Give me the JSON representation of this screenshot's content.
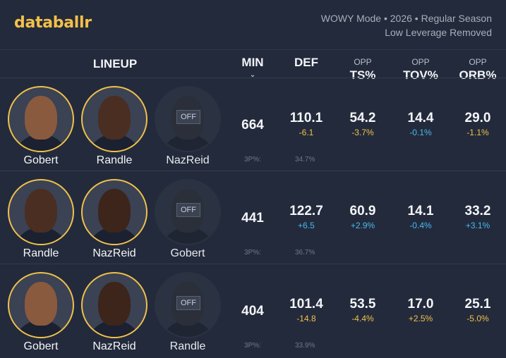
{
  "header": {
    "logo": "databallr",
    "mode_line1": "WOWY Mode • 2026 • Regular Season",
    "mode_line2": "Low Leverage Removed"
  },
  "columns": {
    "lineup": "LINEUP",
    "min": "MIN",
    "def": "DEF",
    "ts_sub": "OPP",
    "ts": "TS%",
    "tov_sub": "OPP",
    "tov": "TOV%",
    "orb_sub": "OPP",
    "orb": "ORB%",
    "sort_icon": "chevron-down-icon"
  },
  "colors": {
    "accent": "#f0c14b",
    "positive": "#49b9f0",
    "background": "#232a3b"
  },
  "rows": [
    {
      "players": [
        {
          "name": "Gobert",
          "status": "on"
        },
        {
          "name": "Randle",
          "status": "on"
        },
        {
          "name": "NazReid",
          "status": "off",
          "tag": "OFF"
        }
      ],
      "min": "664",
      "def": {
        "value": "110.1",
        "delta": "-6.1"
      },
      "ts": {
        "value": "54.2",
        "delta": "-3.7%"
      },
      "tov": {
        "value": "14.4",
        "delta": "-0.1%"
      },
      "orb": {
        "value": "29.0",
        "delta": "-1.1%"
      },
      "tp_label": "3P%:",
      "tp_value": "34.7%"
    },
    {
      "players": [
        {
          "name": "Randle",
          "status": "on"
        },
        {
          "name": "NazReid",
          "status": "on"
        },
        {
          "name": "Gobert",
          "status": "off",
          "tag": "OFF"
        }
      ],
      "min": "441",
      "def": {
        "value": "122.7",
        "delta": "+6.5"
      },
      "ts": {
        "value": "60.9",
        "delta": "+2.9%"
      },
      "tov": {
        "value": "14.1",
        "delta": "-0.4%"
      },
      "orb": {
        "value": "33.2",
        "delta": "+3.1%"
      },
      "tp_label": "3P%:",
      "tp_value": "36.7%"
    },
    {
      "players": [
        {
          "name": "Gobert",
          "status": "on"
        },
        {
          "name": "NazReid",
          "status": "on"
        },
        {
          "name": "Randle",
          "status": "off",
          "tag": "OFF"
        }
      ],
      "min": "404",
      "def": {
        "value": "101.4",
        "delta": "-14.8"
      },
      "ts": {
        "value": "53.5",
        "delta": "-4.4%"
      },
      "tov": {
        "value": "17.0",
        "delta": "+2.5%"
      },
      "orb": {
        "value": "25.1",
        "delta": "-5.0%"
      },
      "tp_label": "3P%:",
      "tp_value": "33.9%"
    }
  ]
}
